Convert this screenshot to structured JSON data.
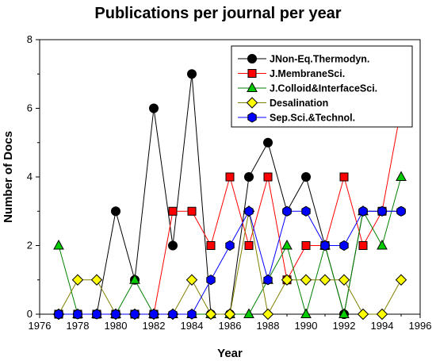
{
  "chart_data": {
    "type": "line",
    "title": "Publications per journal per year",
    "xlabel": "Year",
    "ylabel": "Number of Docs",
    "xlim": [
      1976,
      1996
    ],
    "ylim": [
      0,
      8
    ],
    "xticks": [
      "1976",
      "1978",
      "1980",
      "1982",
      "1984",
      "1986",
      "1988",
      "1990",
      "1992",
      "1994",
      "1996"
    ],
    "yticks": [
      "0",
      "2",
      "4",
      "6",
      "8"
    ],
    "grid": false,
    "legend_position": "top-right",
    "x": [
      1977,
      1978,
      1979,
      1980,
      1981,
      1982,
      1983,
      1984,
      1985,
      1986,
      1987,
      1988,
      1989,
      1990,
      1991,
      1992,
      1993,
      1994,
      1995
    ],
    "series": [
      {
        "name": "JNon-Eq.Thermodyn.",
        "marker": "circle",
        "color": "#000000",
        "marker_color": "#000000",
        "values": [
          0,
          0,
          0,
          3,
          1,
          6,
          2,
          7,
          0,
          0,
          4,
          5,
          3,
          4,
          2,
          0,
          3,
          3,
          3
        ]
      },
      {
        "name": "J.MembraneSci.",
        "marker": "square",
        "color": "#ff0000",
        "marker_color": "#ff0000",
        "values": [
          0,
          0,
          0,
          0,
          0,
          0,
          3,
          3,
          2,
          4,
          2,
          4,
          1,
          2,
          2,
          4,
          2,
          3,
          6
        ]
      },
      {
        "name": "J.Colloid&InterfaceSci.",
        "marker": "triangle",
        "color": "#008000",
        "marker_color": "#00cc00",
        "values": [
          2,
          0,
          0,
          0,
          1,
          0,
          0,
          0,
          0,
          0,
          0,
          1,
          2,
          0,
          2,
          0,
          3,
          2,
          4
        ]
      },
      {
        "name": "Desalination",
        "marker": "diamond",
        "color": "#808000",
        "marker_color": "#ffff00",
        "values": [
          0,
          1,
          1,
          0,
          0,
          0,
          0,
          1,
          0,
          0,
          3,
          0,
          1,
          1,
          1,
          1,
          0,
          0,
          1
        ]
      },
      {
        "name": "Sep.Sci.&Technol.",
        "marker": "hexagon",
        "color": "#0000ff",
        "marker_color": "#0000ff",
        "values": [
          0,
          0,
          0,
          0,
          0,
          0,
          0,
          0,
          1,
          2,
          3,
          1,
          3,
          3,
          2,
          2,
          3,
          3,
          3
        ]
      }
    ]
  }
}
